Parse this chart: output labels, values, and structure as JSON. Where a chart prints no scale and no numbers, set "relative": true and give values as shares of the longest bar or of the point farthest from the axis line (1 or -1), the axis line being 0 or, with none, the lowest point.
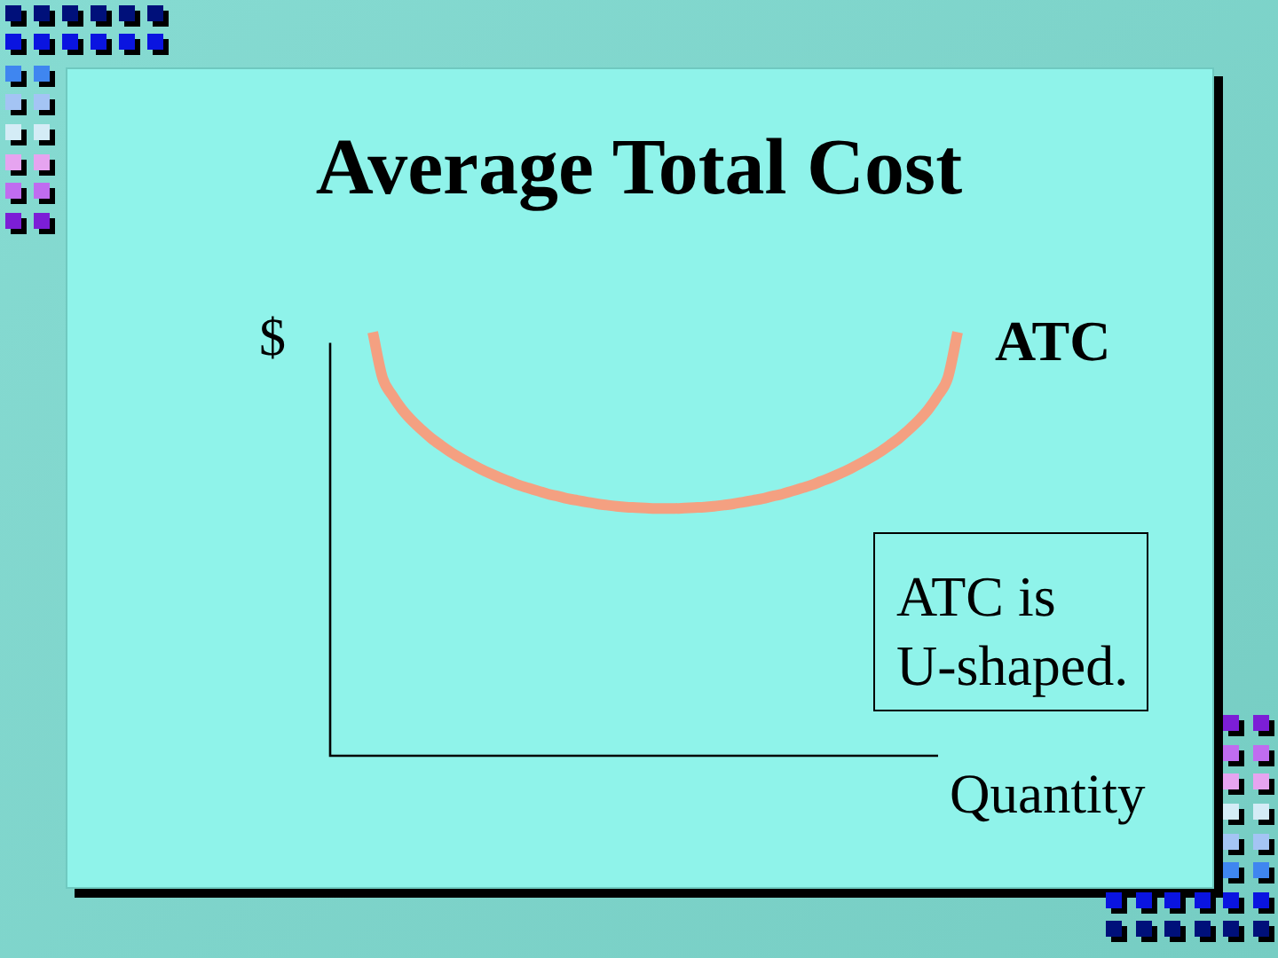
{
  "chart_data": {
    "type": "line",
    "title": "Average Total Cost",
    "xlabel": "Quantity",
    "ylabel": "$",
    "relative": true,
    "categories": [
      null,
      null,
      null,
      null,
      null,
      null,
      null,
      null,
      null,
      null,
      null,
      null,
      null,
      null,
      null,
      null,
      null,
      null,
      null,
      null,
      null,
      null,
      null,
      null,
      null,
      null,
      null,
      null,
      null,
      null,
      null,
      null,
      null,
      null,
      null,
      null,
      null,
      null,
      null,
      null,
      null,
      null,
      null,
      null,
      null,
      null,
      null,
      null,
      null,
      null,
      null,
      null,
      null,
      null,
      null,
      null,
      null,
      null,
      null,
      null,
      null
    ],
    "series": [
      {
        "name": "ATC",
        "color": "#f4a081",
        "values": [
          1,
          0.893,
          0.851,
          0.818,
          0.792,
          0.77,
          0.75,
          0.733,
          0.717,
          0.703,
          0.69,
          0.678,
          0.667,
          0.657,
          0.648,
          0.639,
          0.632,
          0.625,
          0.618,
          0.613,
          0.607,
          0.603,
          0.599,
          0.595,
          0.592,
          0.589,
          0.587,
          0.586,
          0.585,
          0.584,
          0.584,
          0.584,
          0.585,
          0.586,
          0.587,
          0.589,
          0.592,
          0.595,
          0.599,
          0.603,
          0.607,
          0.613,
          0.618,
          0.625,
          0.632,
          0.639,
          0.648,
          0.657,
          0.667,
          0.678,
          0.69,
          0.703,
          0.717,
          0.733,
          0.75,
          0.77,
          0.792,
          0.818,
          0.851,
          0.893,
          1
        ]
      }
    ],
    "annotations": [
      "ATC is U-shaped."
    ]
  }
}
